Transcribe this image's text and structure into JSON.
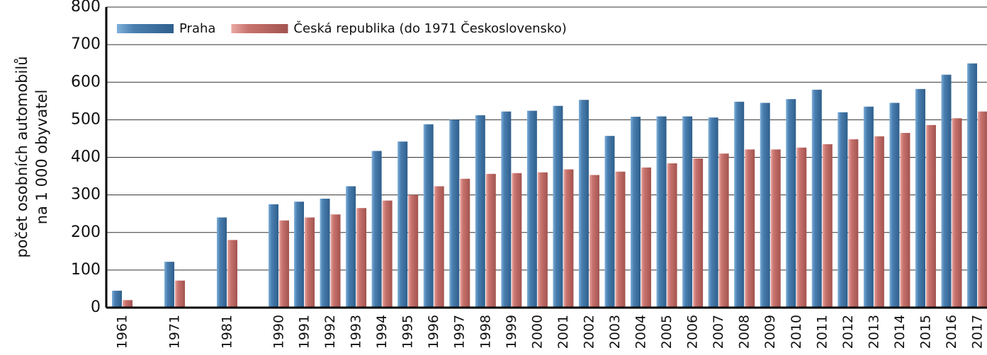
{
  "chart_data": {
    "type": "bar",
    "y_label": [
      "počet osobních automobilů",
      "na 1 000 obyvatel"
    ],
    "categories": [
      "1961",
      "1971",
      "1981",
      "1990",
      "1991",
      "1992",
      "1993",
      "1994",
      "1995",
      "1996",
      "1997",
      "1998",
      "1999",
      "2000",
      "2001",
      "2002",
      "2003",
      "2004",
      "2005",
      "2006",
      "2007",
      "2008",
      "2009",
      "2010",
      "2011",
      "2012",
      "2013",
      "2014",
      "2015",
      "2016",
      "2017"
    ],
    "series": [
      {
        "name": "Praha",
        "color": "#4a7fb0",
        "values": [
          45,
          122,
          240,
          275,
          282,
          290,
          323,
          417,
          442,
          488,
          500,
          512,
          522,
          524,
          537,
          553,
          457,
          508,
          509,
          509,
          506,
          548,
          545,
          555,
          580,
          520,
          535,
          545,
          582,
          620,
          650
        ]
      },
      {
        "name": "Česká republika (do 1971 Československo)",
        "color": "#c8736e",
        "values": [
          20,
          72,
          180,
          232,
          240,
          248,
          265,
          285,
          300,
          323,
          343,
          356,
          358,
          360,
          368,
          353,
          362,
          373,
          384,
          397,
          410,
          421,
          421,
          426,
          435,
          448,
          456,
          465,
          486,
          504,
          522
        ]
      }
    ],
    "ylim": [
      0,
      800
    ],
    "yticks": [
      0,
      100,
      200,
      300,
      400,
      500,
      600,
      700,
      800
    ],
    "grid": true,
    "legend": "top-left"
  }
}
